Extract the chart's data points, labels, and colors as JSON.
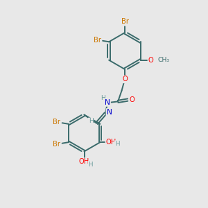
{
  "background_color": "#e8e8e8",
  "figsize": [
    3.0,
    3.0
  ],
  "dpi": 100,
  "br_color": "#cc7700",
  "o_color": "#ff0000",
  "n_color": "#0000cc",
  "h_color": "#669999",
  "bond_color": "#3a6b6b",
  "bond_lw": 1.4,
  "dbo": 0.055,
  "font_size": 7.2,
  "xlim": [
    0,
    10
  ],
  "ylim": [
    0,
    10
  ]
}
